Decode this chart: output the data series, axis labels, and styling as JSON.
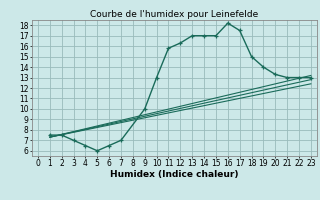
{
  "title": "Courbe de l'humidex pour Leinefelde",
  "xlabel": "Humidex (Indice chaleur)",
  "xlim": [
    -0.5,
    23.5
  ],
  "ylim": [
    5.5,
    18.5
  ],
  "xticks": [
    0,
    1,
    2,
    3,
    4,
    5,
    6,
    7,
    8,
    9,
    10,
    11,
    12,
    13,
    14,
    15,
    16,
    17,
    18,
    19,
    20,
    21,
    22,
    23
  ],
  "yticks": [
    6,
    7,
    8,
    9,
    10,
    11,
    12,
    13,
    14,
    15,
    16,
    17,
    18
  ],
  "bg_color": "#cce8e8",
  "grid_color": "#99bbbb",
  "line_color": "#1a6b5a",
  "main_line": {
    "x": [
      1,
      2,
      3,
      4,
      5,
      6,
      7,
      9,
      10,
      11,
      12,
      13,
      14,
      15,
      16,
      17,
      18,
      19,
      20,
      21,
      22,
      23
    ],
    "y": [
      7.5,
      7.5,
      7.0,
      6.5,
      6.0,
      6.5,
      7.0,
      10.0,
      13.0,
      15.8,
      16.3,
      17.0,
      17.0,
      17.0,
      18.2,
      17.5,
      15.0,
      14.0,
      13.3,
      13.0,
      13.0,
      13.0
    ]
  },
  "straight_lines": [
    {
      "x": [
        1,
        23
      ],
      "y": [
        7.3,
        13.2
      ]
    },
    {
      "x": [
        1,
        23
      ],
      "y": [
        7.3,
        12.8
      ]
    },
    {
      "x": [
        1,
        23
      ],
      "y": [
        7.3,
        12.4
      ]
    }
  ],
  "title_fontsize": 6.5,
  "axis_fontsize": 6.5,
  "tick_fontsize": 5.5
}
